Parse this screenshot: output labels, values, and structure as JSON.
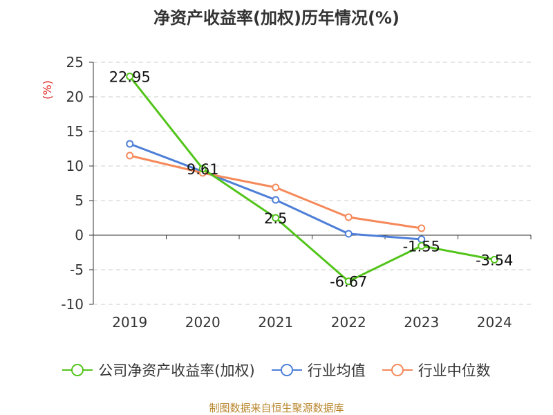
{
  "chart_data": {
    "type": "line",
    "title": "净资产收益率(加权)历年情况(%)",
    "ylabel": "(%)",
    "xlabel": "",
    "categories": [
      "2019",
      "2020",
      "2021",
      "2022",
      "2023",
      "2024"
    ],
    "ylim": [
      -10,
      25
    ],
    "yticks": [
      25,
      20,
      15,
      10,
      5,
      0,
      -5,
      -10
    ],
    "grid": true,
    "legend_position": "bottom",
    "series": [
      {
        "name": "公司净资产收益率(加权)",
        "color": "#52c41a",
        "labeled": true,
        "values": [
          22.95,
          9.61,
          2.5,
          -6.67,
          -1.55,
          -3.54
        ],
        "labels": [
          "22.95",
          "9.61",
          "2.5",
          "-6.67",
          "-1.55",
          "-3.54"
        ]
      },
      {
        "name": "行业均值",
        "color": "#4e7fd8",
        "labeled": false,
        "values": [
          13.2,
          9.2,
          5.1,
          0.2,
          -0.6,
          null
        ]
      },
      {
        "name": "行业中位数",
        "color": "#f5895a",
        "labeled": false,
        "values": [
          11.5,
          9.0,
          6.9,
          2.6,
          1.0,
          null
        ]
      }
    ]
  },
  "source_text": "制图数据来自恒生聚源数据库"
}
